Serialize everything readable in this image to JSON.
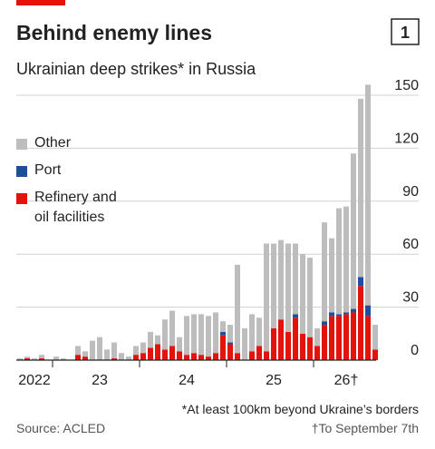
{
  "chart_data": {
    "type": "stacked_bar",
    "title": "Behind enemy lines",
    "subtitle": "Ukrainian deep strikes* in Russia",
    "chart_number": "1",
    "categories": [
      null,
      null,
      "2022",
      null,
      null,
      null,
      null,
      null,
      null,
      null,
      null,
      "23",
      null,
      null,
      null,
      null,
      null,
      null,
      null,
      null,
      null,
      null,
      null,
      "24",
      null,
      null,
      null,
      null,
      null,
      null,
      null,
      null,
      null,
      null,
      null,
      "25",
      null,
      null,
      null,
      null,
      null,
      null,
      null,
      null,
      null,
      "26†",
      null,
      null,
      null,
      null
    ],
    "series": [
      {
        "name": "Refinery and oil facilities",
        "color": "#e3120b",
        "values": [
          0,
          1,
          0,
          1,
          0,
          0,
          0,
          0,
          3,
          2,
          0,
          0,
          0,
          1,
          0,
          0,
          3,
          4,
          7,
          9,
          6,
          8,
          5,
          3,
          4,
          3,
          2,
          4,
          14,
          9,
          4,
          0,
          5,
          8,
          5,
          18,
          23,
          16,
          24,
          15,
          13,
          8,
          20,
          25,
          25,
          26,
          27,
          42,
          25,
          6
        ]
      },
      {
        "name": "Port",
        "color": "#1f4e9c",
        "values": [
          0,
          0,
          0,
          0,
          0,
          0,
          0,
          0,
          0,
          0,
          0,
          0,
          0,
          0,
          0,
          0,
          0,
          0,
          0,
          0,
          0,
          0,
          0,
          0,
          0,
          0,
          0,
          0,
          2,
          1,
          0,
          0,
          0,
          0,
          0,
          0,
          0,
          0,
          2,
          0,
          0,
          0,
          2,
          2,
          1,
          1,
          2,
          5,
          6,
          0
        ]
      },
      {
        "name": "Other",
        "color": "#bdbdbd",
        "values": [
          1,
          1,
          1,
          2,
          0,
          2,
          1,
          0,
          5,
          3,
          11,
          13,
          6,
          9,
          4,
          2,
          5,
          6,
          9,
          5,
          17,
          20,
          8,
          22,
          22,
          23,
          23,
          23,
          6,
          10,
          50,
          18,
          21,
          16,
          61,
          48,
          45,
          50,
          40,
          45,
          45,
          10,
          56,
          42,
          60,
          60,
          88,
          101,
          125,
          14
        ]
      }
    ],
    "ylim": [
      0,
      150
    ],
    "yticks": [
      0,
      30,
      60,
      90,
      120,
      150
    ],
    "grid": true,
    "footnote": "*At least 100km beyond Ukraine’s borders",
    "source": "Source: ACLED",
    "note": "†To September 7th"
  }
}
